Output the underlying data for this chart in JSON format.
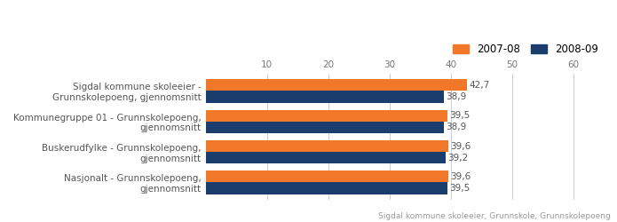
{
  "categories": [
    "Sigdal kommune skoleeier -\nGrunnskolepoeng, gjennomsnitt",
    "Kommunegruppe 01 - Grunnskolepoeng,\ngjennomsnitt",
    "Buskerudfylke - Grunnskolepoeng,\ngjennomsnitt",
    "Nasjonalt - Grunnskolepoeng,\ngjennomsnitt"
  ],
  "values_2007": [
    42.7,
    39.5,
    39.6,
    39.6
  ],
  "values_2008": [
    38.9,
    38.9,
    39.2,
    39.5
  ],
  "labels_2007": [
    "42,7",
    "39,5",
    "39,6",
    "39,6"
  ],
  "labels_2008": [
    "38,9",
    "38,9",
    "39,2",
    "39,5"
  ],
  "color_2007": "#f07828",
  "color_2008": "#1a3d6e",
  "legend_2007": "2007-08",
  "legend_2008": "2008-09",
  "xlim": [
    0,
    65
  ],
  "xticks": [
    10,
    20,
    30,
    40,
    50,
    60
  ],
  "footnote": "Sigdal kommune skoleeier, Grunnskole, Grunnskolepoeng",
  "bar_height": 0.38,
  "label_fontsize": 7.5,
  "tick_fontsize": 7.5,
  "footnote_fontsize": 6.5,
  "legend_fontsize": 8.5
}
